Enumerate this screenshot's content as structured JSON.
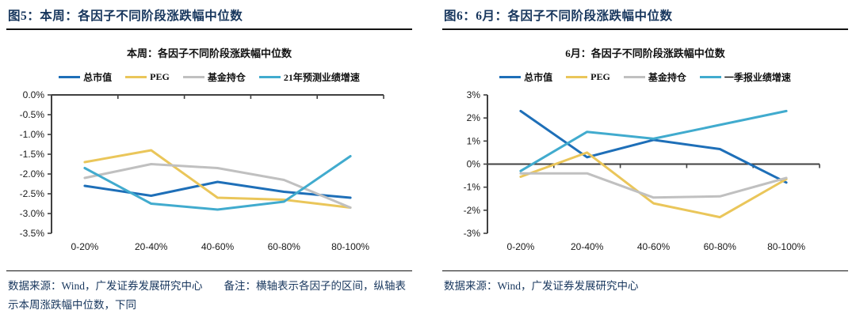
{
  "colors": {
    "header_text": "#17365d",
    "caption_text": "#17365d",
    "rule": "#121212",
    "axis": "#404040",
    "axis_label": "#1a1a1a",
    "series_blue": "#1e6fb8",
    "series_yellow": "#eac65a",
    "series_gray": "#c0c0c0",
    "series_cyan": "#41abce"
  },
  "figures": [
    {
      "header": "图5：本周：各因子不同阶段涨跌幅中位数",
      "caption": "数据来源：Wind，广发证券发展研究中心　　备注：横轴表示各因子的区间，纵轴表示本周涨跌幅中位数，下同"
    },
    {
      "header": "图6：6月：各因子不同阶段涨跌幅中位数",
      "caption": "数据来源：Wind，广发证券发展研究中心"
    }
  ],
  "chart_data": [
    {
      "type": "line",
      "title": "本周：各因子不同阶段涨跌幅中位数",
      "categories": [
        "0-20%",
        "20-40%",
        "40-60%",
        "60-80%",
        "80-100%"
      ],
      "series": [
        {
          "name": "总市值",
          "color": "#1e6fb8",
          "values": [
            -2.3,
            -2.55,
            -2.2,
            -2.45,
            -2.6
          ]
        },
        {
          "name": "PEG",
          "color": "#eac65a",
          "values": [
            -1.7,
            -1.4,
            -2.6,
            -2.65,
            -2.85
          ]
        },
        {
          "name": "基金持仓",
          "color": "#c0c0c0",
          "values": [
            -2.1,
            -1.75,
            -1.85,
            -2.15,
            -2.85
          ]
        },
        {
          "name": "21年预测业绩增速",
          "color": "#41abce",
          "values": [
            -1.85,
            -2.75,
            -2.9,
            -2.7,
            -1.55
          ]
        }
      ],
      "ylim": [
        -3.5,
        0
      ],
      "yticks": [
        {
          "value": 0,
          "label": "0.0%"
        },
        {
          "value": -0.5,
          "label": "-0.5%"
        },
        {
          "value": -1,
          "label": "-1.0%"
        },
        {
          "value": -1.5,
          "label": "-1.5%"
        },
        {
          "value": -2,
          "label": "-2.0%"
        },
        {
          "value": -2.5,
          "label": "-2.5%"
        },
        {
          "value": -3,
          "label": "-3.0%"
        },
        {
          "value": -3.5,
          "label": "-3.5%"
        }
      ],
      "xlabel": "",
      "ylabel": "",
      "grid": false,
      "legend_position": "top"
    },
    {
      "type": "line",
      "title": "6月：各因子不同阶段涨跌幅中位数",
      "categories": [
        "0-20%",
        "20-40%",
        "40-60%",
        "60-80%",
        "80-100%"
      ],
      "series": [
        {
          "name": "总市值",
          "color": "#1e6fb8",
          "values": [
            2.3,
            0.3,
            1.05,
            0.65,
            -0.8
          ]
        },
        {
          "name": "PEG",
          "color": "#eac65a",
          "values": [
            -0.55,
            0.5,
            -1.7,
            -2.3,
            -0.65
          ]
        },
        {
          "name": "基金持仓",
          "color": "#c0c0c0",
          "values": [
            -0.4,
            -0.4,
            -1.45,
            -1.4,
            -0.6
          ]
        },
        {
          "name": "一季报业绩增速",
          "color": "#41abce",
          "values": [
            -0.3,
            1.4,
            1.1,
            1.7,
            2.3
          ]
        }
      ],
      "ylim": [
        -3,
        3
      ],
      "yticks": [
        {
          "value": 3,
          "label": "3%"
        },
        {
          "value": 2,
          "label": "2%"
        },
        {
          "value": 1,
          "label": "1%"
        },
        {
          "value": 0,
          "label": "0%"
        },
        {
          "value": -1,
          "label": "-1%"
        },
        {
          "value": -2,
          "label": "-2%"
        },
        {
          "value": -3,
          "label": "-3%"
        }
      ],
      "xlabel": "",
      "ylabel": "",
      "grid": false,
      "legend_position": "top"
    }
  ]
}
